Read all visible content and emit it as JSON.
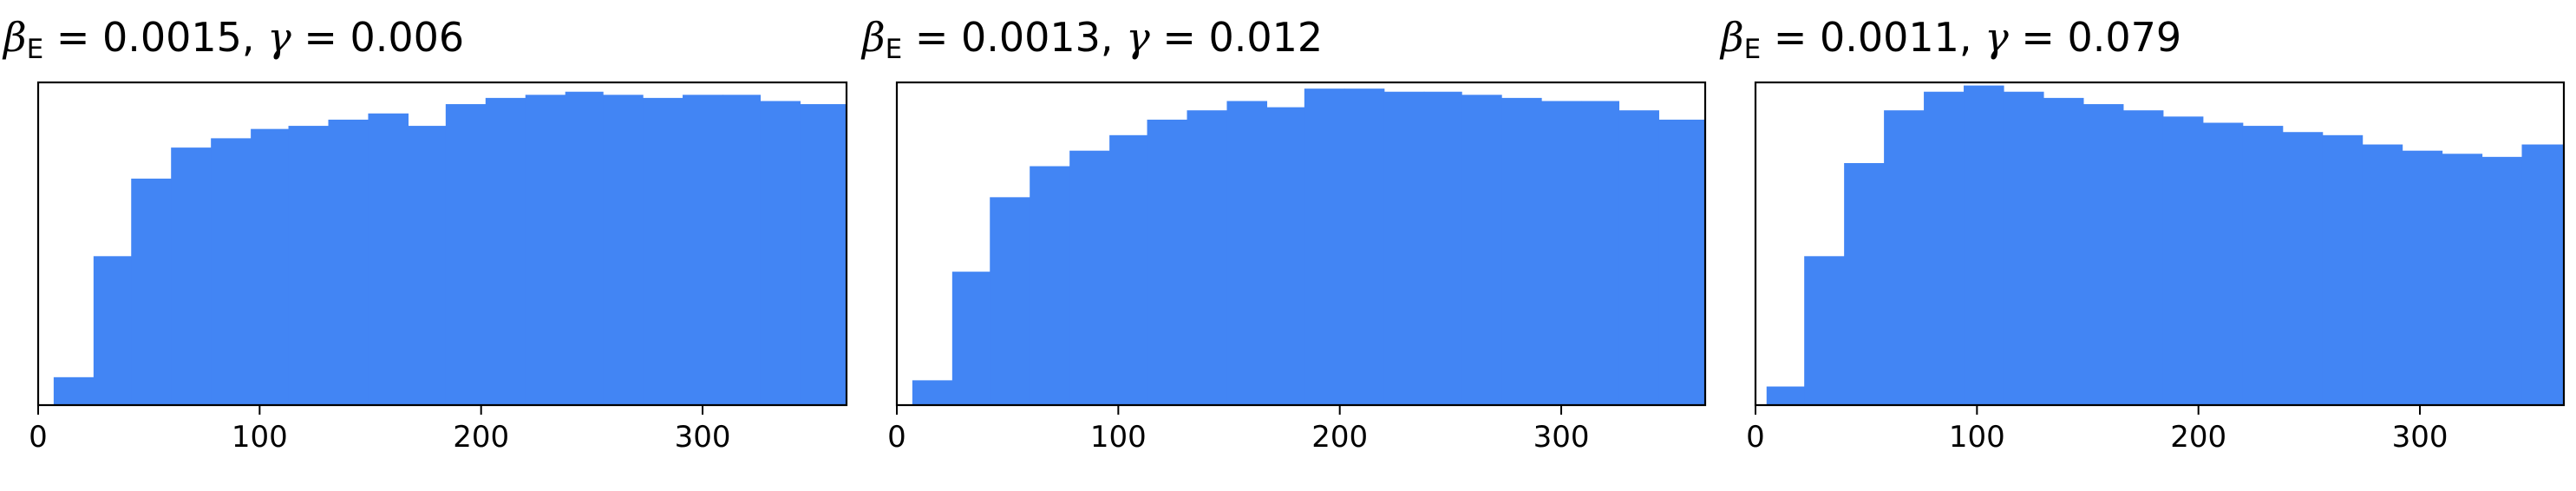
{
  "colors": {
    "bar": "#4285f4",
    "axis": "#000000"
  },
  "chart_data": [
    {
      "type": "bar",
      "title": {
        "beta_symbol": "β",
        "beta_subscript": "E",
        "beta_value": "= 0.0015,",
        "gamma_symbol": "γ",
        "gamma_value": "= 0.006"
      },
      "xlim": [
        0,
        365
      ],
      "x_ticks": [
        0,
        100,
        200,
        300
      ],
      "x_tick_labels": [
        "0",
        "100",
        "200",
        "300"
      ],
      "y_ticks_visible": false,
      "ylim": [
        0,
        1.0
      ],
      "bin_edges": [
        7,
        25,
        42,
        60,
        78,
        96,
        113,
        131,
        149,
        167,
        184,
        202,
        220,
        238,
        255,
        273,
        291,
        309,
        326,
        344,
        365
      ],
      "values": [
        0.09,
        0.48,
        0.73,
        0.83,
        0.86,
        0.89,
        0.9,
        0.92,
        0.94,
        0.9,
        0.97,
        0.99,
        1.0,
        1.01,
        1.0,
        0.99,
        1.0,
        1.0,
        0.98,
        0.97
      ]
    },
    {
      "type": "bar",
      "title": {
        "beta_symbol": "β",
        "beta_subscript": "E",
        "beta_value": "= 0.0013,",
        "gamma_symbol": "γ",
        "gamma_value": "= 0.012"
      },
      "xlim": [
        0,
        365
      ],
      "x_ticks": [
        0,
        100,
        200,
        300
      ],
      "x_tick_labels": [
        "0",
        "100",
        "200",
        "300"
      ],
      "y_ticks_visible": false,
      "ylim": [
        0,
        1.0
      ],
      "bin_edges": [
        7,
        25,
        42,
        60,
        78,
        96,
        113,
        131,
        149,
        167,
        184,
        202,
        220,
        238,
        255,
        273,
        291,
        309,
        326,
        344,
        365
      ],
      "values": [
        0.08,
        0.43,
        0.67,
        0.77,
        0.82,
        0.87,
        0.92,
        0.95,
        0.98,
        0.96,
        1.02,
        1.02,
        1.01,
        1.01,
        1.0,
        0.99,
        0.98,
        0.98,
        0.95,
        0.92
      ]
    },
    {
      "type": "bar",
      "title": {
        "beta_symbol": "β",
        "beta_subscript": "E",
        "beta_value": "= 0.0011,",
        "gamma_symbol": "γ",
        "gamma_value": "= 0.079"
      },
      "xlim": [
        0,
        365
      ],
      "x_ticks": [
        0,
        100,
        200,
        300
      ],
      "x_tick_labels": [
        "0",
        "100",
        "200",
        "300"
      ],
      "y_ticks_visible": false,
      "ylim": [
        0,
        1.0
      ],
      "bin_edges": [
        5,
        22,
        40,
        58,
        76,
        94,
        112,
        130,
        148,
        166,
        184,
        202,
        220,
        238,
        256,
        274,
        292,
        310,
        328,
        346,
        365
      ],
      "values": [
        0.06,
        0.48,
        0.78,
        0.95,
        1.01,
        1.03,
        1.01,
        0.99,
        0.97,
        0.95,
        0.93,
        0.91,
        0.9,
        0.88,
        0.87,
        0.84,
        0.82,
        0.81,
        0.8,
        0.84
      ]
    }
  ]
}
